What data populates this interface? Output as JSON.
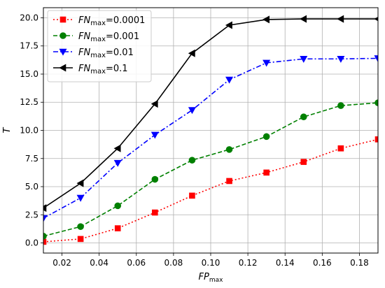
{
  "chart_data": {
    "type": "line",
    "xlabel": {
      "main": "FP",
      "sub": "max"
    },
    "ylabel": "T",
    "xlim": [
      0.01,
      0.19
    ],
    "ylim": [
      -0.9,
      20.9
    ],
    "xticks": [
      0.02,
      0.04,
      0.06,
      0.08,
      0.1,
      0.12,
      0.14,
      0.16,
      0.18
    ],
    "xtick_labels": [
      "0.02",
      "0.04",
      "0.06",
      "0.08",
      "0.10",
      "0.12",
      "0.14",
      "0.16",
      "0.18"
    ],
    "yticks": [
      0.0,
      2.5,
      5.0,
      7.5,
      10.0,
      12.5,
      15.0,
      17.5,
      20.0
    ],
    "ytick_labels": [
      "0.0",
      "2.5",
      "5.0",
      "7.5",
      "10.0",
      "12.5",
      "15.0",
      "17.5",
      "20.0"
    ],
    "grid": true,
    "legend_position": "upper-left",
    "x": [
      0.01,
      0.03,
      0.05,
      0.07,
      0.09,
      0.11,
      0.13,
      0.15,
      0.17,
      0.19
    ],
    "series": [
      {
        "legend_main": "FN",
        "legend_sub": "max",
        "legend_value": "=0.0001",
        "color": "#ff0000",
        "marker": "square",
        "dash": "dotted",
        "values": [
          0.1,
          0.35,
          1.3,
          2.7,
          4.2,
          5.5,
          6.25,
          7.2,
          8.4,
          9.2
        ]
      },
      {
        "legend_main": "FN",
        "legend_sub": "max",
        "legend_value": "=0.001",
        "color": "#008000",
        "marker": "circle",
        "dash": "dashed",
        "values": [
          0.6,
          1.45,
          3.3,
          5.65,
          7.35,
          8.3,
          9.45,
          11.2,
          12.2,
          12.45
        ]
      },
      {
        "legend_main": "FN",
        "legend_sub": "max",
        "legend_value": "=0.01",
        "color": "#0000ff",
        "marker": "triangle-down",
        "dash": "dashdot",
        "values": [
          2.2,
          4.0,
          7.1,
          9.6,
          11.8,
          14.5,
          16.0,
          16.35,
          16.35,
          16.4
        ]
      },
      {
        "legend_main": "FN",
        "legend_sub": "max",
        "legend_value": "=0.1",
        "color": "#000000",
        "marker": "triangle-left",
        "dash": "solid",
        "values": [
          3.1,
          5.3,
          8.4,
          12.35,
          16.85,
          19.35,
          19.85,
          19.9,
          19.9,
          19.9
        ]
      }
    ]
  }
}
